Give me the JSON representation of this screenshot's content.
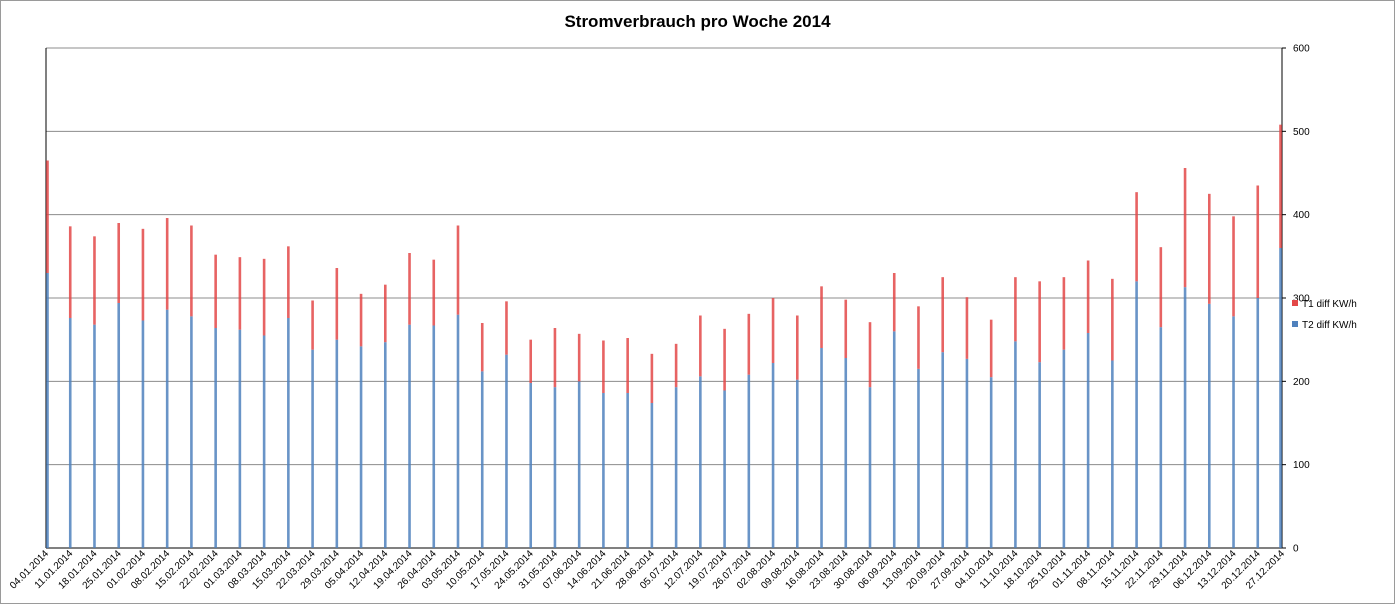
{
  "chart_data": {
    "type": "bar",
    "stacked": true,
    "title": "Stromverbrauch pro Woche 2014",
    "xlabel": "",
    "ylabel": "",
    "ylim": [
      0,
      600
    ],
    "yticks": [
      "0",
      "100",
      "200",
      "300",
      "400",
      "500",
      "600"
    ],
    "y_axis_side": "right",
    "grid": true,
    "legend_position": "right",
    "categories": [
      "04.01.2014",
      "11.01.2014",
      "18.01.2014",
      "25.01.2014",
      "01.02.2014",
      "08.02.2014",
      "15.02.2014",
      "22.02.2014",
      "01.03.2014",
      "08.03.2014",
      "15.03.2014",
      "22.03.2014",
      "29.03.2014",
      "05.04.2014",
      "12.04.2014",
      "19.04.2014",
      "26.04.2014",
      "03.05.2014",
      "10.05.2014",
      "17.05.2014",
      "24.05.2014",
      "31.05.2014",
      "07.06.2014",
      "14.06.2014",
      "21.06.2014",
      "28.06.2014",
      "05.07.2014",
      "12.07.2014",
      "19.07.2014",
      "26.07.2014",
      "02.08.2014",
      "09.08.2014",
      "16.08.2014",
      "23.08.2014",
      "30.08.2014",
      "06.09.2014",
      "13.09.2014",
      "20.09.2014",
      "27.09.2014",
      "04.10.2014",
      "11.10.2014",
      "18.10.2014",
      "25.10.2014",
      "01.11.2014",
      "08.11.2014",
      "15.11.2014",
      "22.11.2014",
      "29.11.2014",
      "06.12.2014",
      "13.12.2014",
      "20.12.2014",
      "27.12.2014"
    ],
    "series": [
      {
        "name": "T2 diff KW/h",
        "color": "#4f81bd",
        "values": [
          330,
          276,
          268,
          294,
          273,
          286,
          278,
          264,
          262,
          255,
          276,
          238,
          250,
          242,
          247,
          268,
          267,
          280,
          212,
          232,
          198,
          193,
          200,
          186,
          186,
          174,
          193,
          206,
          189,
          208,
          222,
          202,
          240,
          228,
          193,
          260,
          215,
          235,
          227,
          205,
          248,
          223,
          238,
          258,
          225,
          320,
          265,
          313,
          293,
          278,
          300,
          360
        ]
      },
      {
        "name": "T1 diff KW/h",
        "color": "#e34848",
        "values": [
          135,
          110,
          106,
          96,
          110,
          110,
          109,
          88,
          87,
          92,
          86,
          59,
          86,
          63,
          69,
          86,
          79,
          107,
          58,
          64,
          52,
          71,
          57,
          63,
          66,
          59,
          52,
          73,
          74,
          73,
          78,
          77,
          74,
          70,
          78,
          70,
          75,
          90,
          74,
          69,
          77,
          97,
          87,
          87,
          98,
          107,
          96,
          143,
          132,
          120,
          135,
          148
        ]
      }
    ]
  }
}
